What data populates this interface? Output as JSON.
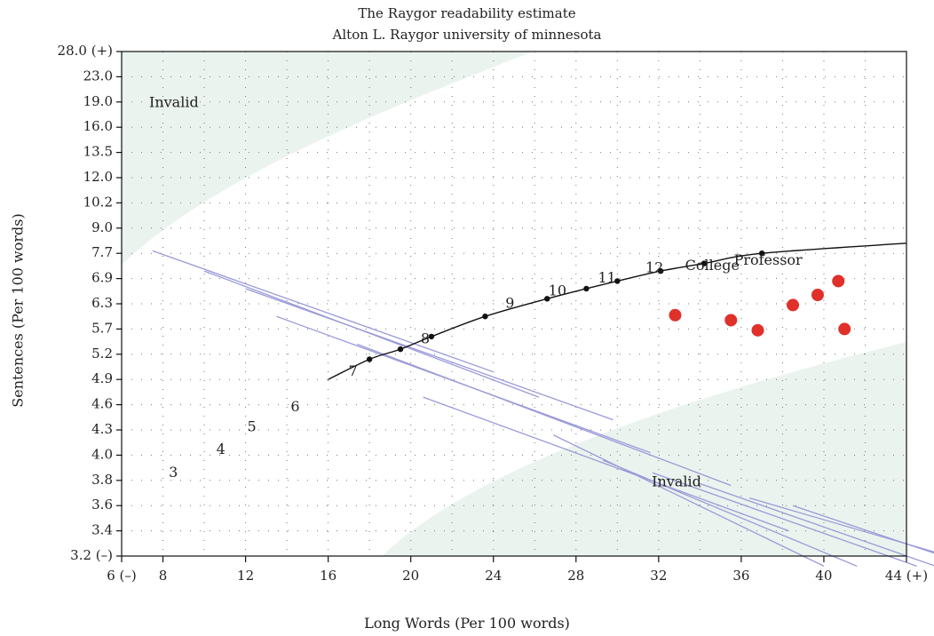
{
  "chart_data": {
    "type": "scatter",
    "title": "The Raygor readability estimate",
    "subtitle": "Alton L. Raygor university of minnesota",
    "xlabel": "Long Words (Per 100 words)",
    "ylabel": "Sentences (Per 100 words)",
    "xlim": [
      6,
      44
    ],
    "x_ticks": [
      {
        "value": 6,
        "label": "6 (–)"
      },
      {
        "value": 8,
        "label": "8"
      },
      {
        "value": 12,
        "label": "12"
      },
      {
        "value": 16,
        "label": "16"
      },
      {
        "value": 20,
        "label": "20"
      },
      {
        "value": 24,
        "label": "24"
      },
      {
        "value": 28,
        "label": "28"
      },
      {
        "value": 32,
        "label": "32"
      },
      {
        "value": 36,
        "label": "36"
      },
      {
        "value": 40,
        "label": "40"
      },
      {
        "value": 44,
        "label": "44 (+)"
      }
    ],
    "y_ticks": [
      "3.2 (–)",
      "3.4",
      "3.6",
      "3.8",
      "4.0",
      "4.3",
      "4.6",
      "4.9",
      "5.2",
      "5.7",
      "6.3",
      "6.9",
      "7.7",
      "9.0",
      "10.2",
      "12.0",
      "13.5",
      "16.0",
      "19.0",
      "23.0",
      "28.0 (+)"
    ],
    "grid": true,
    "regions": [
      {
        "label": "Invalid",
        "position": "top-left"
      },
      {
        "label": "Invalid",
        "position": "bottom-right"
      }
    ],
    "grade_lines": [
      {
        "label": "3",
        "start": [
          7.5,
          12.1
        ],
        "end": [
          24,
          7.3
        ],
        "label_at": [
          8.5,
          3.3
        ]
      },
      {
        "label": "4",
        "start": [
          10,
          11.3
        ],
        "end": [
          26.2,
          6.3
        ],
        "label_at": [
          10.8,
          4.2
        ]
      },
      {
        "label": "5",
        "start": [
          12,
          10.6
        ],
        "end": [
          29.8,
          5.4
        ],
        "label_at": [
          12.3,
          5.1
        ]
      },
      {
        "label": "6",
        "start": [
          13.5,
          9.5
        ],
        "end": [
          31.6,
          4.1
        ],
        "label_at": [
          14.4,
          5.9
        ]
      },
      {
        "label": "7",
        "start": [
          17.4,
          8.4
        ],
        "end": [
          35.5,
          2.8
        ],
        "label_at": [
          17.2,
          7.3
        ]
      },
      {
        "label": "8",
        "start": [
          20.6,
          6.3
        ],
        "end": [
          38.3,
          1.0
        ],
        "label_at": [
          20.7,
          8.6
        ]
      },
      {
        "label": "9",
        "start": [
          26.9,
          4.8
        ],
        "end": [
          40,
          -0.4
        ],
        "label_at": [
          24.8,
          10.0
        ]
      },
      {
        "label": "10",
        "start": [
          29.3,
          3.8
        ],
        "end": [
          41.6,
          -0.4
        ],
        "label_at": [
          27.1,
          10.5
        ]
      },
      {
        "label": "11",
        "start": [
          31.7,
          3.3
        ],
        "end": [
          44.5,
          -0.4
        ],
        "label_at": [
          29.5,
          11.0
        ]
      },
      {
        "label": "12",
        "start": [
          33.9,
          2.9
        ],
        "end": [
          47.5,
          -1.0
        ],
        "label_at": [
          31.8,
          11.4
        ]
      },
      {
        "label": "College",
        "start": [
          36.4,
          2.3
        ],
        "end": [
          50.2,
          -1.0
        ],
        "label_at": [
          34.6,
          11.5
        ]
      },
      {
        "label": "Professor",
        "start": [
          38.5,
          2.0
        ],
        "end": [
          53.0,
          -2.0
        ],
        "label_at": [
          37.3,
          11.7
        ]
      }
    ],
    "curve": [
      [
        16,
        7.0
      ],
      [
        18,
        7.8
      ],
      [
        19.5,
        8.2
      ],
      [
        21,
        8.7
      ],
      [
        23.6,
        9.5
      ],
      [
        26.6,
        10.2
      ],
      [
        28.5,
        10.6
      ],
      [
        30,
        10.9
      ],
      [
        32.1,
        11.3
      ],
      [
        34.2,
        11.6
      ],
      [
        37,
        12.0
      ],
      [
        44,
        12.4
      ]
    ],
    "curve_dots": [
      [
        18,
        7.8
      ],
      [
        19.5,
        8.2
      ],
      [
        21,
        8.7
      ],
      [
        23.6,
        9.5
      ],
      [
        26.6,
        10.2
      ],
      [
        28.5,
        10.6
      ],
      [
        30,
        10.9
      ],
      [
        32.1,
        11.3
      ],
      [
        34.2,
        11.6
      ],
      [
        37,
        12.0
      ]
    ],
    "series": [
      {
        "color": "#e0302a",
        "points": [
          [
            32.8,
            9.55
          ],
          [
            35.5,
            9.35
          ],
          [
            36.8,
            8.95
          ],
          [
            38.5,
            9.95
          ],
          [
            39.7,
            10.35
          ],
          [
            40.7,
            10.9
          ],
          [
            41.0,
            9.0
          ]
        ]
      }
    ]
  }
}
